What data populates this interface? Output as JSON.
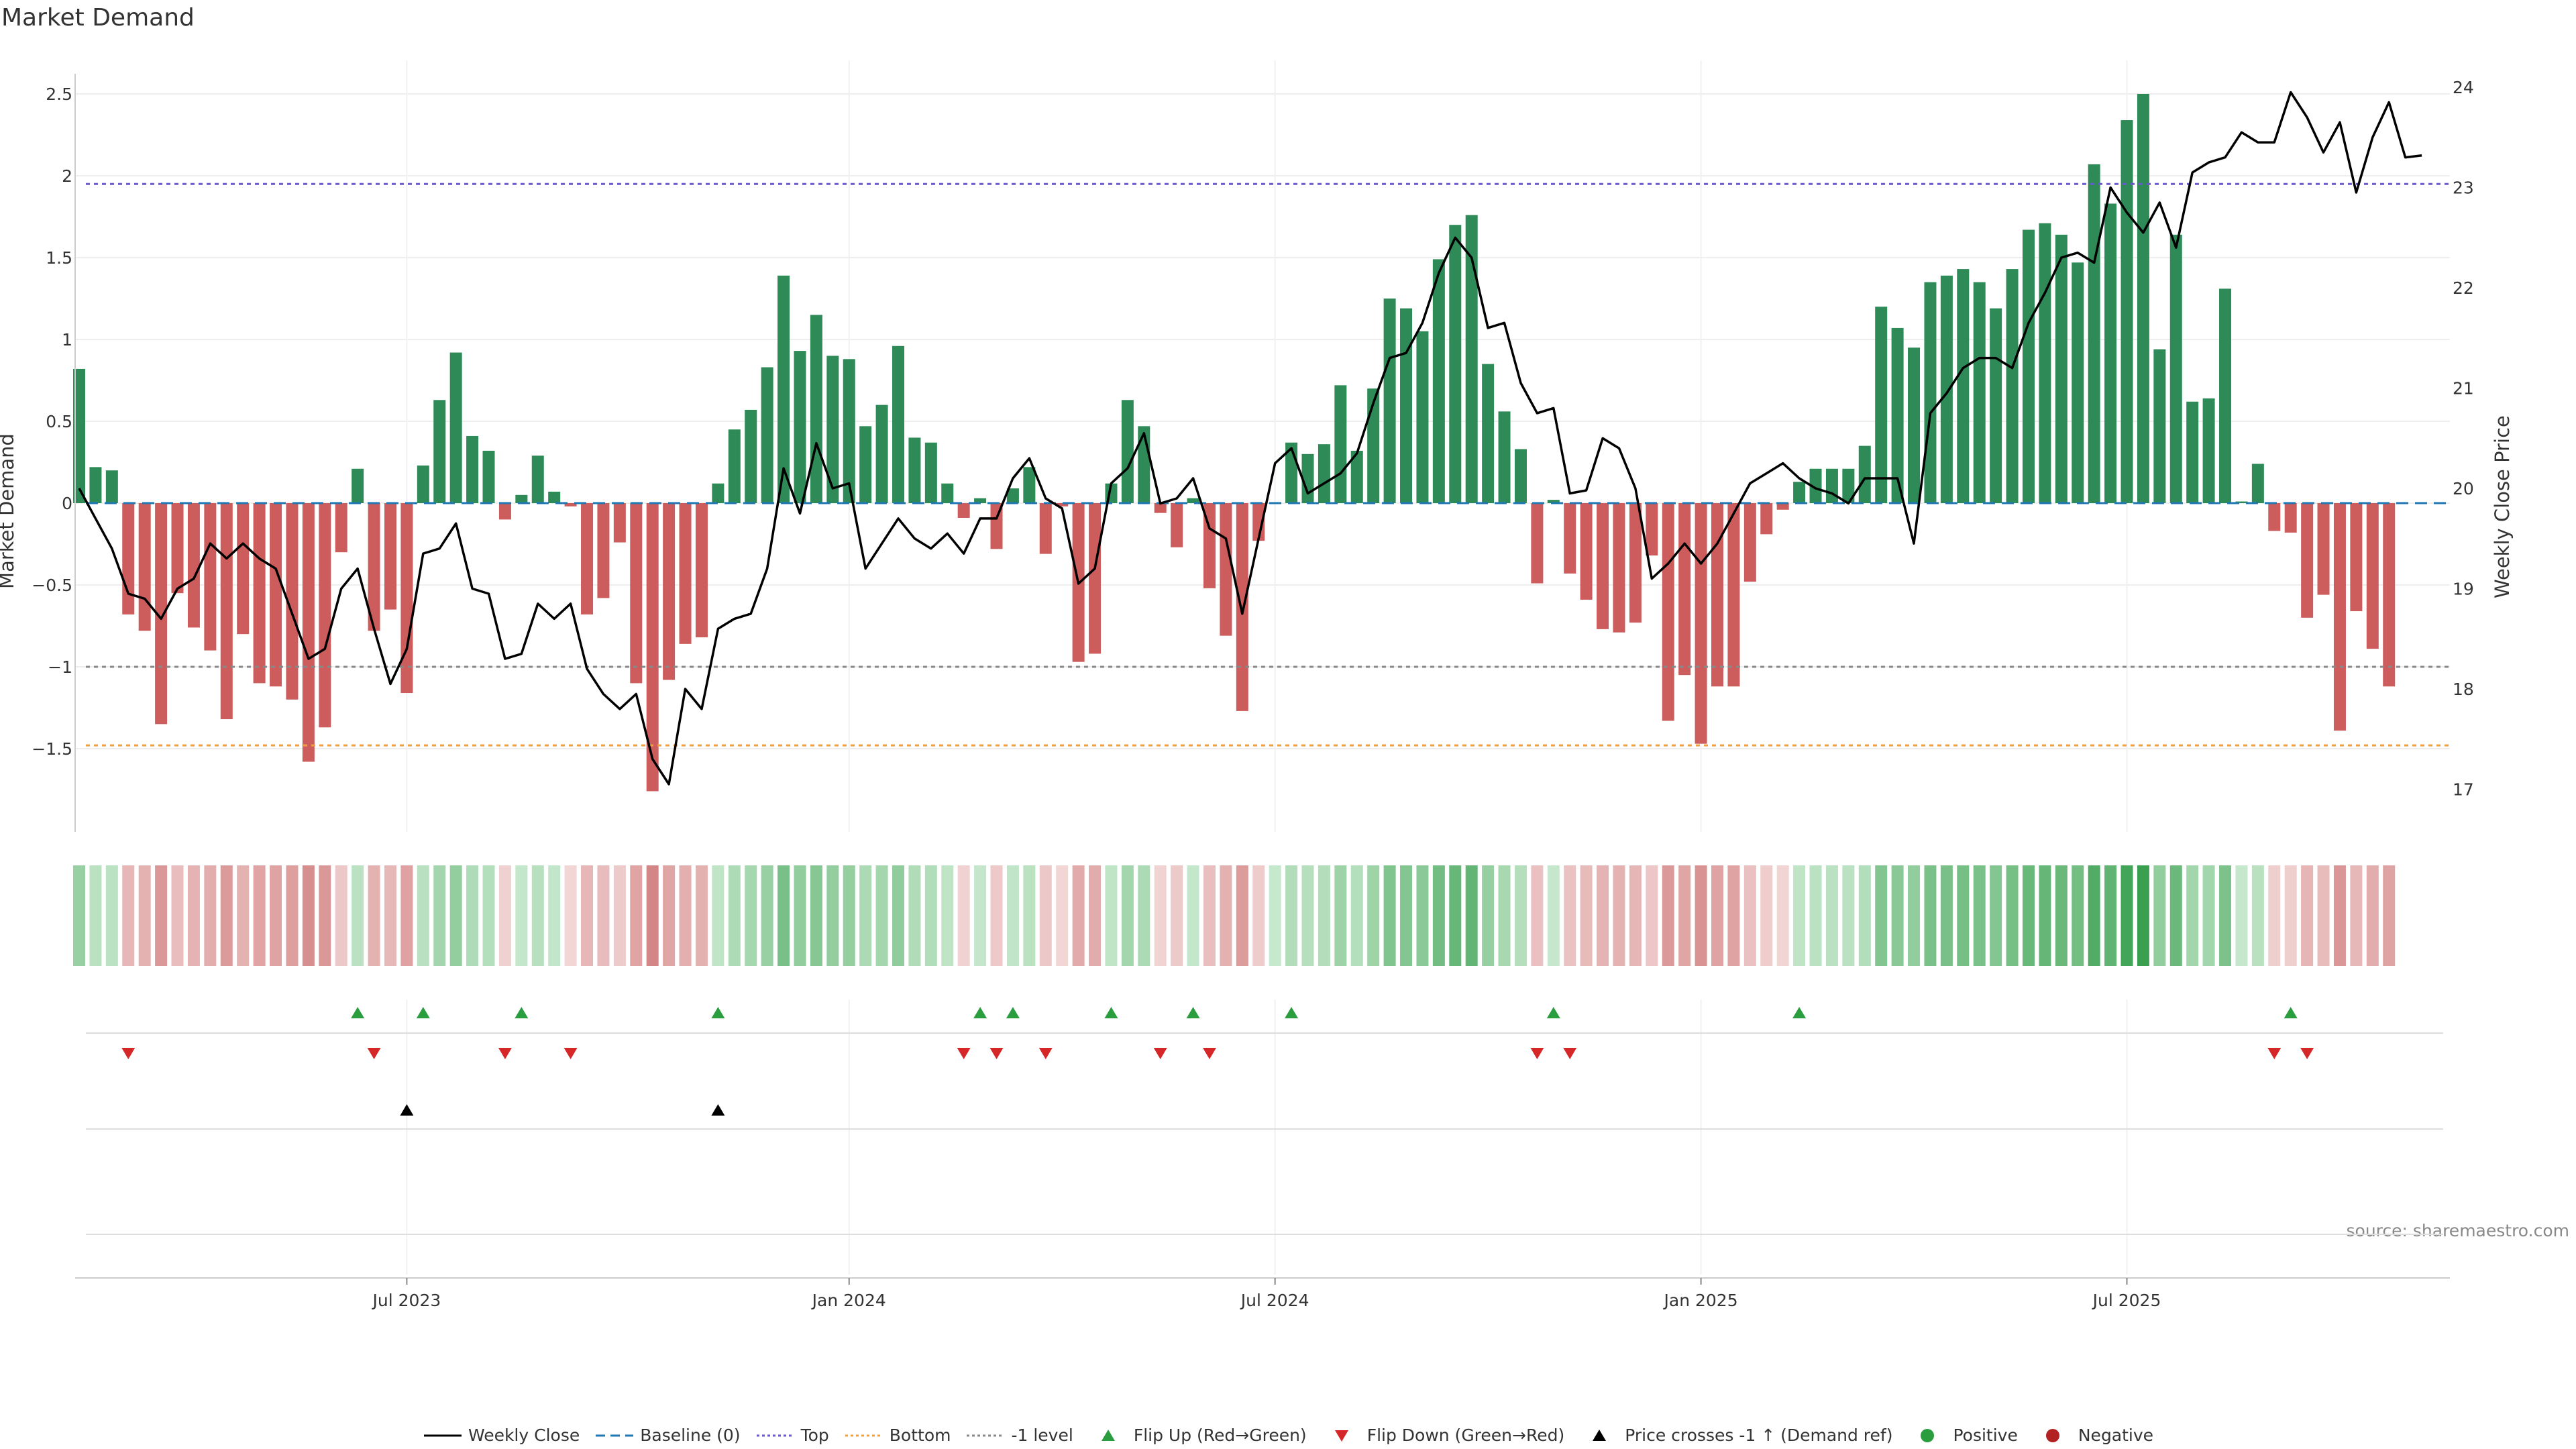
{
  "title": "Market Demand",
  "source": "source: sharemaestro.com",
  "colors": {
    "positive": "#2e8b57",
    "negative": "#cd5c5c",
    "line": "#000000",
    "top": "#6a5acd",
    "bottom": "#f0a040",
    "level": "#888888",
    "baseline": "#1f77b4",
    "flip_up": "#2a9d3e",
    "flip_down": "#d62728",
    "cross": "#000000"
  },
  "chart_data": {
    "type": "bar",
    "title": "Market Demand",
    "ylabel": "Market Demand",
    "y2label": "Weekly Close Price",
    "ylim": [
      -2.0,
      2.65
    ],
    "y2lim": [
      16.6,
      24.3
    ],
    "yticks": [
      2.5,
      2,
      1.5,
      1,
      0.5,
      0,
      -0.5,
      -1,
      -1.5
    ],
    "ytick_labels": [
      "2.5",
      "2",
      "1.5",
      "1",
      "0.5",
      "0",
      "−0.5",
      "−1",
      "−1.5"
    ],
    "y2ticks": [
      24,
      23,
      22,
      21,
      20,
      19,
      18,
      17
    ],
    "y2tick_labels": [
      "24",
      "23",
      "22",
      "21",
      "20",
      "19",
      "18",
      "17"
    ],
    "x_label_indices": [
      20,
      47,
      73,
      99,
      125
    ],
    "x_labels": [
      "Jul 2023",
      "Jan 2024",
      "Jul 2024",
      "Jan 2025",
      "Jul 2025"
    ],
    "reference_lines": {
      "top": 1.95,
      "bottom": -1.48,
      "minus_one": -1.0,
      "baseline": 0
    },
    "series": [
      {
        "name": "Market Demand",
        "values": [
          0.82,
          0.22,
          0.2,
          -0.68,
          -0.78,
          -1.35,
          -0.55,
          -0.76,
          -0.9,
          -1.32,
          -0.8,
          -1.1,
          -1.12,
          -1.2,
          -1.58,
          -1.37,
          -0.3,
          0.21,
          -0.78,
          -0.65,
          -1.16,
          0.23,
          0.63,
          0.92,
          0.41,
          0.32,
          -0.1,
          0.05,
          0.29,
          0.07,
          -0.02,
          -0.68,
          -0.58,
          -0.24,
          -1.1,
          -1.76,
          -1.08,
          -0.86,
          -0.82,
          0.12,
          0.45,
          0.57,
          0.83,
          1.39,
          0.93,
          1.15,
          0.9,
          0.88,
          0.47,
          0.6,
          0.96,
          0.4,
          0.37,
          0.12,
          -0.09,
          0.03,
          -0.28,
          0.09,
          0.22,
          -0.31,
          -0.02,
          -0.97,
          -0.92,
          0.12,
          0.63,
          0.47,
          -0.06,
          -0.27,
          0.03,
          -0.52,
          -0.81,
          -1.27,
          -0.23,
          0.0,
          0.37,
          0.3,
          0.36,
          0.72,
          0.32,
          0.7,
          1.25,
          1.19,
          1.05,
          1.49,
          1.7,
          1.76,
          0.85,
          0.56,
          0.33,
          -0.49,
          0.02,
          -0.43,
          -0.59,
          -0.77,
          -0.79,
          -0.73,
          -0.32,
          -1.33,
          -1.05,
          -1.47,
          -1.12,
          -1.12,
          -0.48,
          -0.19,
          -0.04,
          0.13,
          0.21,
          0.21,
          0.21,
          0.35,
          1.2,
          1.07,
          0.95,
          1.35,
          1.39,
          1.43,
          1.35,
          1.19,
          1.43,
          1.67,
          1.71,
          1.64,
          1.47,
          2.07,
          1.83,
          2.34,
          2.5,
          0.94,
          1.64,
          0.62,
          0.64,
          1.31,
          0.01,
          0.24,
          -0.17,
          -0.18,
          -0.7,
          -0.56,
          -1.39,
          -0.66,
          -0.89,
          -1.12
        ]
      },
      {
        "name": "Weekly Close",
        "values": [
          20.0,
          19.7,
          19.4,
          18.95,
          18.9,
          18.7,
          19.0,
          19.1,
          19.45,
          19.3,
          19.45,
          19.3,
          19.2,
          18.75,
          18.3,
          18.4,
          19.0,
          19.2,
          18.6,
          18.05,
          18.4,
          19.35,
          19.4,
          19.65,
          19.0,
          18.95,
          18.3,
          18.35,
          18.85,
          18.7,
          18.85,
          18.2,
          17.95,
          17.8,
          17.95,
          17.3,
          17.05,
          18.0,
          17.8,
          18.6,
          18.7,
          18.75,
          19.2,
          20.2,
          19.75,
          20.45,
          20.0,
          20.05,
          19.2,
          19.45,
          19.7,
          19.5,
          19.4,
          19.55,
          19.35,
          19.7,
          19.7,
          20.1,
          20.3,
          19.9,
          19.8,
          19.05,
          19.2,
          20.05,
          20.2,
          20.55,
          19.85,
          19.9,
          20.1,
          19.6,
          19.5,
          18.75,
          19.5,
          20.25,
          20.4,
          19.95,
          20.05,
          20.15,
          20.35,
          20.85,
          21.3,
          21.35,
          21.65,
          22.15,
          22.5,
          22.3,
          21.6,
          21.65,
          21.05,
          20.75,
          20.8,
          19.95,
          19.98,
          20.5,
          20.4,
          20.0,
          19.1,
          19.25,
          19.45,
          19.25,
          19.45,
          19.75,
          20.05,
          20.15,
          20.25,
          20.1,
          20.0,
          19.95,
          19.85,
          20.1,
          20.1,
          20.1,
          19.45,
          20.75,
          20.95,
          21.2,
          21.3,
          21.3,
          21.2,
          21.65,
          21.95,
          22.3,
          22.35,
          22.25,
          23.0,
          22.75,
          22.55,
          22.85,
          22.4,
          23.15,
          23.25,
          23.3,
          23.55,
          23.45,
          23.45,
          23.95,
          23.7,
          23.35,
          23.65,
          22.95,
          23.5,
          23.85,
          23.3,
          23.32
        ]
      }
    ],
    "flip_up_indices": [
      17,
      21,
      27,
      39,
      55,
      57,
      63,
      68,
      74,
      90,
      105,
      135
    ],
    "flip_down_indices": [
      3,
      18,
      26,
      30,
      54,
      56,
      59,
      66,
      69,
      89,
      91,
      134,
      136
    ],
    "price_cross_indices": [
      20,
      39
    ]
  },
  "legend": [
    {
      "label": "Weekly Close",
      "kind": "line",
      "color": "#000000"
    },
    {
      "label": "Baseline (0)",
      "kind": "dash",
      "color": "#1f77b4"
    },
    {
      "label": "Top",
      "kind": "dot",
      "color": "#6a5acd"
    },
    {
      "label": "Bottom",
      "kind": "dot",
      "color": "#f0a040"
    },
    {
      "label": "-1 level",
      "kind": "dot",
      "color": "#888888"
    },
    {
      "label": "Flip Up (Red→Green)",
      "kind": "tri-up",
      "color": "#2a9d3e"
    },
    {
      "label": "Flip Down (Green→Red)",
      "kind": "tri-down",
      "color": "#d62728"
    },
    {
      "label": "Price crosses -1 ↑ (Demand ref)",
      "kind": "tri-up",
      "color": "#000000"
    },
    {
      "label": "Positive",
      "kind": "circle",
      "color": "#2a9d3e"
    },
    {
      "label": "Negative",
      "kind": "circle",
      "color": "#b22222"
    }
  ]
}
